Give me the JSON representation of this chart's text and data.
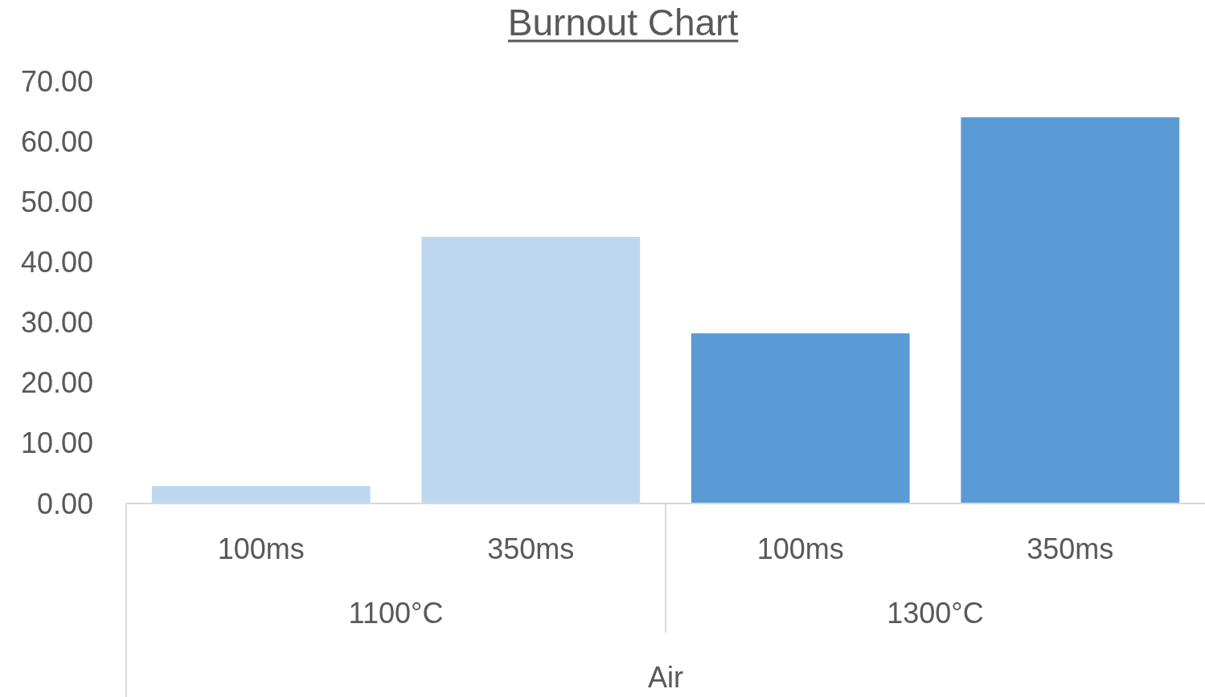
{
  "chart_data": {
    "type": "bar",
    "title": "Burnout Chart",
    "xlabel": "Air",
    "categories": [
      "100ms",
      "350ms",
      "100ms",
      "350ms"
    ],
    "values": [
      2.9,
      44.2,
      28.2,
      64.0
    ],
    "colors": [
      "#bdd7ee",
      "#bdd7ee",
      "#5b9bd5",
      "#5b9bd5"
    ],
    "annotations": [
      "1100°C",
      "1300°C"
    ],
    "ylim": [
      0,
      70
    ],
    "yticks": [
      {
        "value": 0,
        "label": "0.00"
      },
      {
        "value": 10,
        "label": "10.00"
      },
      {
        "value": 20,
        "label": "20.00"
      },
      {
        "value": 30,
        "label": "30.00"
      },
      {
        "value": 40,
        "label": "40.00"
      },
      {
        "value": 50,
        "label": "50.00"
      },
      {
        "value": 60,
        "label": "60.00"
      },
      {
        "value": 70,
        "label": "70.00"
      }
    ],
    "grid": false
  }
}
